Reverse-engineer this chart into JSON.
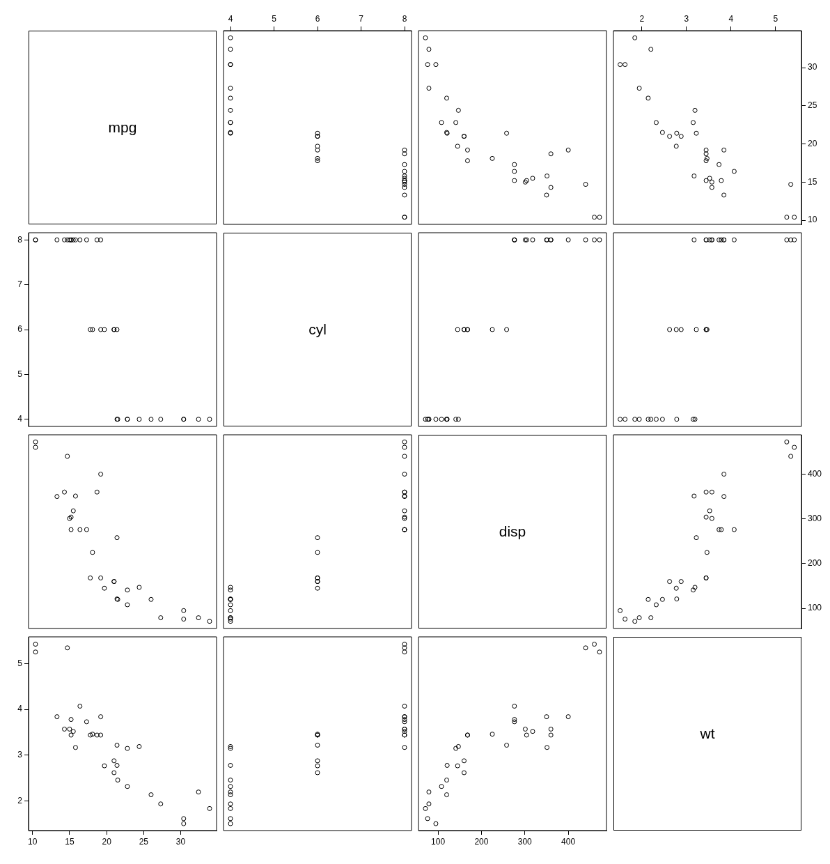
{
  "chart_data": [
    {
      "type": "other",
      "title": "mpg"
    },
    {
      "type": "scatter",
      "color": "#000000",
      "marker": "circle",
      "xlim": [
        3.84,
        8.16
      ],
      "ylim": [
        9.46,
        34.84
      ],
      "xticks": [
        4,
        5,
        6,
        7,
        8
      ],
      "tick_labels": "x",
      "x": [
        6,
        6,
        4,
        6,
        8,
        6,
        8,
        4,
        4,
        6,
        6,
        8,
        8,
        8,
        8,
        8,
        8,
        4,
        4,
        4,
        4,
        8,
        8,
        8,
        8,
        4,
        4,
        4,
        8,
        6,
        8,
        4
      ],
      "values": [
        21.0,
        21.0,
        22.8,
        21.4,
        18.7,
        18.1,
        14.3,
        24.4,
        22.8,
        19.2,
        17.8,
        16.4,
        17.3,
        15.2,
        10.4,
        10.4,
        14.7,
        32.4,
        30.4,
        33.9,
        21.5,
        15.5,
        15.2,
        13.3,
        19.2,
        27.3,
        26.0,
        30.4,
        15.8,
        19.7,
        15.0,
        21.4
      ]
    },
    {
      "type": "scatter",
      "color": "#000000",
      "marker": "circle",
      "xlim": [
        55,
        488
      ],
      "ylim": [
        9.46,
        34.84
      ],
      "tick_labels": false,
      "x": [
        160,
        160,
        108,
        258,
        360,
        225,
        360,
        147,
        141,
        168,
        168,
        276,
        276,
        276,
        472,
        460,
        440,
        79,
        76,
        71,
        120,
        318,
        304,
        350,
        400,
        79,
        120,
        95,
        351,
        145,
        301,
        121
      ],
      "values": [
        21.0,
        21.0,
        22.8,
        21.4,
        18.7,
        18.1,
        14.3,
        24.4,
        22.8,
        19.2,
        17.8,
        16.4,
        17.3,
        15.2,
        10.4,
        10.4,
        14.7,
        32.4,
        30.4,
        33.9,
        21.5,
        15.5,
        15.2,
        13.3,
        19.2,
        27.3,
        26.0,
        30.4,
        15.8,
        19.7,
        15.0,
        21.4
      ]
    },
    {
      "type": "scatter",
      "color": "#000000",
      "marker": "circle",
      "xlim": [
        1.36,
        5.58
      ],
      "ylim": [
        9.46,
        34.84
      ],
      "xticks": [
        2,
        3,
        4,
        5
      ],
      "yticks": [
        10,
        15,
        20,
        25,
        30
      ],
      "x": [
        2.62,
        2.88,
        2.32,
        3.22,
        3.44,
        3.46,
        3.57,
        3.19,
        3.15,
        3.44,
        3.44,
        4.07,
        3.73,
        3.78,
        5.25,
        5.42,
        5.34,
        2.2,
        1.62,
        1.84,
        2.46,
        3.52,
        3.44,
        3.84,
        3.84,
        1.94,
        2.14,
        1.51,
        3.17,
        2.77,
        3.57,
        2.78
      ],
      "values": [
        21.0,
        21.0,
        22.8,
        21.4,
        18.7,
        18.1,
        14.3,
        24.4,
        22.8,
        19.2,
        17.8,
        16.4,
        17.3,
        15.2,
        10.4,
        10.4,
        14.7,
        32.4,
        30.4,
        33.9,
        21.5,
        15.5,
        15.2,
        13.3,
        19.2,
        27.3,
        26.0,
        30.4,
        15.8,
        19.7,
        15.0,
        21.4
      ]
    },
    {
      "type": "scatter",
      "color": "#000000",
      "marker": "circle",
      "xlim": [
        9.46,
        34.84
      ],
      "ylim": [
        3.84,
        8.16
      ],
      "yticks": [
        4,
        5,
        6,
        7,
        8
      ],
      "tick_labels": "y",
      "x": [
        21.0,
        21.0,
        22.8,
        21.4,
        18.7,
        18.1,
        14.3,
        24.4,
        22.8,
        19.2,
        17.8,
        16.4,
        17.3,
        15.2,
        10.4,
        10.4,
        14.7,
        32.4,
        30.4,
        33.9,
        21.5,
        15.5,
        15.2,
        13.3,
        19.2,
        27.3,
        26.0,
        30.4,
        15.8,
        19.7,
        15.0,
        21.4
      ],
      "values": [
        6,
        6,
        4,
        6,
        8,
        6,
        8,
        4,
        4,
        6,
        6,
        8,
        8,
        8,
        8,
        8,
        8,
        4,
        4,
        4,
        4,
        8,
        8,
        8,
        8,
        4,
        4,
        4,
        8,
        6,
        8,
        4
      ]
    },
    {
      "type": "other",
      "title": "cyl"
    },
    {
      "type": "scatter",
      "color": "#000000",
      "marker": "circle",
      "xlim": [
        55,
        488
      ],
      "ylim": [
        3.84,
        8.16
      ],
      "tick_labels": false,
      "x": [
        160,
        160,
        108,
        258,
        360,
        225,
        360,
        147,
        141,
        168,
        168,
        276,
        276,
        276,
        472,
        460,
        440,
        79,
        76,
        71,
        120,
        318,
        304,
        350,
        400,
        79,
        120,
        95,
        351,
        145,
        301,
        121
      ],
      "values": [
        6,
        6,
        4,
        6,
        8,
        6,
        8,
        4,
        4,
        6,
        6,
        8,
        8,
        8,
        8,
        8,
        8,
        4,
        4,
        4,
        4,
        8,
        8,
        8,
        8,
        4,
        4,
        4,
        8,
        6,
        8,
        4
      ]
    },
    {
      "type": "scatter",
      "color": "#000000",
      "marker": "circle",
      "xlim": [
        1.36,
        5.58
      ],
      "ylim": [
        3.84,
        8.16
      ],
      "tick_labels": false,
      "x": [
        2.62,
        2.88,
        2.32,
        3.22,
        3.44,
        3.46,
        3.57,
        3.19,
        3.15,
        3.44,
        3.44,
        4.07,
        3.73,
        3.78,
        5.25,
        5.42,
        5.34,
        2.2,
        1.62,
        1.84,
        2.46,
        3.52,
        3.44,
        3.84,
        3.84,
        1.94,
        2.14,
        1.51,
        3.17,
        2.77,
        3.57,
        2.78
      ],
      "values": [
        6,
        6,
        4,
        6,
        8,
        6,
        8,
        4,
        4,
        6,
        6,
        8,
        8,
        8,
        8,
        8,
        8,
        4,
        4,
        4,
        4,
        8,
        8,
        8,
        8,
        4,
        4,
        4,
        8,
        6,
        8,
        4
      ]
    },
    {
      "type": "scatter",
      "color": "#000000",
      "marker": "circle",
      "xlim": [
        9.46,
        34.84
      ],
      "ylim": [
        55,
        488
      ],
      "tick_labels": false,
      "x": [
        21.0,
        21.0,
        22.8,
        21.4,
        18.7,
        18.1,
        14.3,
        24.4,
        22.8,
        19.2,
        17.8,
        16.4,
        17.3,
        15.2,
        10.4,
        10.4,
        14.7,
        32.4,
        30.4,
        33.9,
        21.5,
        15.5,
        15.2,
        13.3,
        19.2,
        27.3,
        26.0,
        30.4,
        15.8,
        19.7,
        15.0,
        21.4
      ],
      "values": [
        160,
        160,
        108,
        258,
        360,
        225,
        360,
        147,
        141,
        168,
        168,
        276,
        276,
        276,
        472,
        460,
        440,
        79,
        76,
        71,
        120,
        318,
        304,
        350,
        400,
        79,
        120,
        95,
        351,
        145,
        301,
        121
      ]
    },
    {
      "type": "scatter",
      "color": "#000000",
      "marker": "circle",
      "xlim": [
        3.84,
        8.16
      ],
      "ylim": [
        55,
        488
      ],
      "tick_labels": false,
      "x": [
        6,
        6,
        4,
        6,
        8,
        6,
        8,
        4,
        4,
        6,
        6,
        8,
        8,
        8,
        8,
        8,
        8,
        4,
        4,
        4,
        4,
        8,
        8,
        8,
        8,
        4,
        4,
        4,
        8,
        6,
        8,
        4
      ],
      "values": [
        160,
        160,
        108,
        258,
        360,
        225,
        360,
        147,
        141,
        168,
        168,
        276,
        276,
        276,
        472,
        460,
        440,
        79,
        76,
        71,
        120,
        318,
        304,
        350,
        400,
        79,
        120,
        95,
        351,
        145,
        301,
        121
      ]
    },
    {
      "type": "other",
      "title": "disp"
    },
    {
      "type": "scatter",
      "color": "#000000",
      "marker": "circle",
      "xlim": [
        1.36,
        5.58
      ],
      "ylim": [
        55,
        488
      ],
      "yticks": [
        100,
        200,
        300,
        400
      ],
      "tick_labels": "y",
      "x": [
        2.62,
        2.88,
        2.32,
        3.22,
        3.44,
        3.46,
        3.57,
        3.19,
        3.15,
        3.44,
        3.44,
        4.07,
        3.73,
        3.78,
        5.25,
        5.42,
        5.34,
        2.2,
        1.62,
        1.84,
        2.46,
        3.52,
        3.44,
        3.84,
        3.84,
        1.94,
        2.14,
        1.51,
        3.17,
        2.77,
        3.57,
        2.78
      ],
      "values": [
        160,
        160,
        108,
        258,
        360,
        225,
        360,
        147,
        141,
        168,
        168,
        276,
        276,
        276,
        472,
        460,
        440,
        79,
        76,
        71,
        120,
        318,
        304,
        350,
        400,
        79,
        120,
        95,
        351,
        145,
        301,
        121
      ]
    },
    {
      "type": "scatter",
      "color": "#000000",
      "marker": "circle",
      "xlim": [
        9.46,
        34.84
      ],
      "ylim": [
        1.36,
        5.58
      ],
      "xticks": [
        10,
        15,
        20,
        25,
        30
      ],
      "yticks": [
        2,
        3,
        4,
        5
      ],
      "x": [
        21.0,
        21.0,
        22.8,
        21.4,
        18.7,
        18.1,
        14.3,
        24.4,
        22.8,
        19.2,
        17.8,
        16.4,
        17.3,
        15.2,
        10.4,
        10.4,
        14.7,
        32.4,
        30.4,
        33.9,
        21.5,
        15.5,
        15.2,
        13.3,
        19.2,
        27.3,
        26.0,
        30.4,
        15.8,
        19.7,
        15.0,
        21.4
      ],
      "values": [
        2.62,
        2.88,
        2.32,
        3.22,
        3.44,
        3.46,
        3.57,
        3.19,
        3.15,
        3.44,
        3.44,
        4.07,
        3.73,
        3.78,
        5.25,
        5.42,
        5.34,
        2.2,
        1.62,
        1.84,
        2.46,
        3.52,
        3.44,
        3.84,
        3.84,
        1.94,
        2.14,
        1.51,
        3.17,
        2.77,
        3.57,
        2.78
      ]
    },
    {
      "type": "scatter",
      "color": "#000000",
      "marker": "circle",
      "xlim": [
        3.84,
        8.16
      ],
      "ylim": [
        1.36,
        5.58
      ],
      "tick_labels": false,
      "x": [
        6,
        6,
        4,
        6,
        8,
        6,
        8,
        4,
        4,
        6,
        6,
        8,
        8,
        8,
        8,
        8,
        8,
        4,
        4,
        4,
        4,
        8,
        8,
        8,
        8,
        4,
        4,
        4,
        8,
        6,
        8,
        4
      ],
      "values": [
        2.62,
        2.88,
        2.32,
        3.22,
        3.44,
        3.46,
        3.57,
        3.19,
        3.15,
        3.44,
        3.44,
        4.07,
        3.73,
        3.78,
        5.25,
        5.42,
        5.34,
        2.2,
        1.62,
        1.84,
        2.46,
        3.52,
        3.44,
        3.84,
        3.84,
        1.94,
        2.14,
        1.51,
        3.17,
        2.77,
        3.57,
        2.78
      ]
    },
    {
      "type": "scatter",
      "color": "#000000",
      "marker": "circle",
      "xlim": [
        55,
        488
      ],
      "ylim": [
        1.36,
        5.58
      ],
      "xticks": [
        100,
        200,
        300,
        400
      ],
      "tick_labels": "x",
      "x": [
        160,
        160,
        108,
        258,
        360,
        225,
        360,
        147,
        141,
        168,
        168,
        276,
        276,
        276,
        472,
        460,
        440,
        79,
        76,
        71,
        120,
        318,
        304,
        350,
        400,
        79,
        120,
        95,
        351,
        145,
        301,
        121
      ],
      "values": [
        2.62,
        2.88,
        2.32,
        3.22,
        3.44,
        3.46,
        3.57,
        3.19,
        3.15,
        3.44,
        3.44,
        4.07,
        3.73,
        3.78,
        5.25,
        5.42,
        5.34,
        2.2,
        1.62,
        1.84,
        2.46,
        3.52,
        3.44,
        3.84,
        3.84,
        1.94,
        2.14,
        1.51,
        3.17,
        2.77,
        3.57,
        2.78
      ]
    },
    {
      "type": "other",
      "title": "wt"
    }
  ]
}
